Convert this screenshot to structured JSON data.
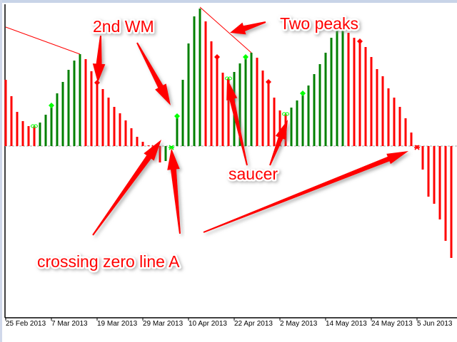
{
  "chart_data": {
    "type": "bar",
    "indicator_style": "histogram oscillator",
    "colors": {
      "up": "#008000",
      "down": "#ff0000",
      "signal_buy": "#00ff00",
      "signal_sell": "#ff0000",
      "annotation": "#ff0000",
      "zero_line": "#aaaaaa"
    },
    "values": [
      93,
      70,
      48,
      35,
      28,
      28,
      33,
      44,
      57,
      74,
      90,
      107,
      120,
      129,
      122,
      105,
      89,
      80,
      68,
      55,
      46,
      36,
      25,
      13,
      6,
      1,
      -10,
      -23,
      -21,
      -1,
      42,
      93,
      144,
      182,
      193,
      175,
      147,
      125,
      103,
      95,
      104,
      116,
      125,
      131,
      124,
      106,
      90,
      68,
      50,
      45,
      54,
      64,
      74,
      85,
      101,
      115,
      131,
      152,
      162,
      165,
      159,
      152,
      147,
      139,
      125,
      108,
      98,
      81,
      68,
      55,
      39,
      19,
      1,
      -33,
      -71,
      -81,
      -103,
      -133,
      -157
    ],
    "ylim": [
      -160,
      200
    ],
    "x_ticks": [
      {
        "index": 0,
        "label": "25 Feb 2013"
      },
      {
        "index": 8,
        "label": "7 Mar 2013"
      },
      {
        "index": 16,
        "label": "19 Mar 2013"
      },
      {
        "index": 24,
        "label": "29 Mar 2013"
      },
      {
        "index": 32,
        "label": "10 Apr 2013"
      },
      {
        "index": 40,
        "label": "22 Apr 2013"
      },
      {
        "index": 48,
        "label": "2 May 2013"
      },
      {
        "index": 56,
        "label": "14 May 2013"
      },
      {
        "index": 64,
        "label": "24 May 2013"
      },
      {
        "index": 72,
        "label": "5 Jun 2013"
      }
    ],
    "signals": [
      {
        "index": 5,
        "type": "saucer",
        "side": "buy"
      },
      {
        "index": 8,
        "type": "diamond",
        "side": "buy"
      },
      {
        "index": 16,
        "type": "diamond",
        "side": "sell"
      },
      {
        "index": 26,
        "type": "cross",
        "side": "sell"
      },
      {
        "index": 29,
        "type": "cross",
        "side": "buy"
      },
      {
        "index": 30,
        "type": "diamond",
        "side": "buy"
      },
      {
        "index": 37,
        "type": "diamond",
        "side": "sell"
      },
      {
        "index": 39,
        "type": "saucer",
        "side": "buy"
      },
      {
        "index": 42,
        "type": "diamond",
        "side": "buy"
      },
      {
        "index": 46,
        "type": "diamond",
        "side": "sell"
      },
      {
        "index": 49,
        "type": "saucer",
        "side": "buy"
      },
      {
        "index": 52,
        "type": "diamond",
        "side": "buy"
      },
      {
        "index": 62,
        "type": "diamond",
        "side": "sell"
      },
      {
        "index": 72,
        "type": "cross",
        "side": "sell"
      }
    ],
    "trend_lines": [
      {
        "from_index": 0,
        "from_value": 167,
        "to_index": 13,
        "to_value": 129
      },
      {
        "from_index": 34,
        "from_value": 195,
        "to_index": 43,
        "to_value": 131
      }
    ],
    "grid": false,
    "legend": "none"
  },
  "annotations": {
    "wm": "2nd WM",
    "peaks": "Two peaks",
    "saucer": "saucer",
    "crossing": "crossing zero line A"
  }
}
